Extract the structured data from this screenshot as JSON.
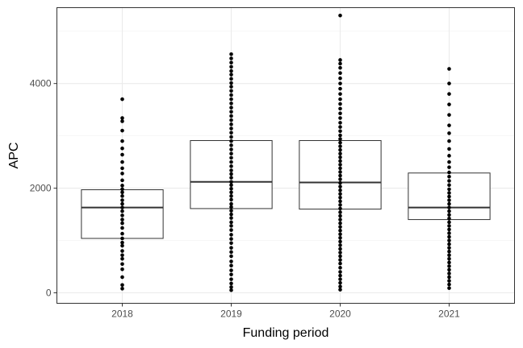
{
  "chart_data": {
    "type": "boxplot",
    "xlabel": "Funding period",
    "ylabel": "APC",
    "categories": [
      "2018",
      "2019",
      "2020",
      "2021"
    ],
    "ylim": [
      -200,
      5450
    ],
    "y_ticks": [
      0,
      2000,
      4000
    ],
    "y_tick_labels": [
      "0",
      "2000",
      "4000"
    ],
    "grid": true,
    "boxes": [
      {
        "category": "2018",
        "q1": 1040,
        "median": 1630,
        "q3": 1970
      },
      {
        "category": "2019",
        "q1": 1610,
        "median": 2120,
        "q3": 2910
      },
      {
        "category": "2020",
        "q1": 1600,
        "median": 2110,
        "q3": 2910
      },
      {
        "category": "2021",
        "q1": 1400,
        "median": 1630,
        "q3": 2290
      }
    ],
    "points": {
      "2018": [
        80,
        150,
        300,
        450,
        550,
        650,
        720,
        800,
        900,
        960,
        1040,
        1130,
        1240,
        1330,
        1400,
        1480,
        1560,
        1630,
        1700,
        1770,
        1850,
        1920,
        1980,
        2050,
        2150,
        2280,
        2380,
        2500,
        2640,
        2760,
        2900,
        3100,
        3280,
        3340,
        3700
      ],
      "2019": [
        50,
        110,
        180,
        260,
        350,
        430,
        520,
        600,
        700,
        780,
        860,
        950,
        1030,
        1110,
        1200,
        1280,
        1350,
        1430,
        1500,
        1570,
        1640,
        1700,
        1780,
        1850,
        1920,
        1990,
        2060,
        2120,
        2200,
        2270,
        2340,
        2420,
        2500,
        2580,
        2660,
        2740,
        2820,
        2900,
        2980,
        3060,
        3140,
        3220,
        3300,
        3380,
        3460,
        3540,
        3620,
        3700,
        3780,
        3860,
        3940,
        4010,
        4090,
        4170,
        4240,
        4320,
        4400,
        4480,
        4560
      ],
      "2020": [
        60,
        120,
        190,
        260,
        330,
        400,
        480,
        560,
        630,
        700,
        770,
        840,
        910,
        980,
        1050,
        1120,
        1190,
        1260,
        1330,
        1400,
        1470,
        1540,
        1610,
        1680,
        1750,
        1820,
        1890,
        1960,
        2030,
        2100,
        2170,
        2240,
        2310,
        2380,
        2450,
        2520,
        2590,
        2660,
        2730,
        2800,
        2870,
        2940,
        3010,
        3090,
        3170,
        3250,
        3340,
        3430,
        3520,
        3610,
        3700,
        3800,
        3900,
        4000,
        4100,
        4200,
        4300,
        4380,
        4450,
        5300
      ],
      "2021": [
        90,
        160,
        230,
        300,
        370,
        440,
        510,
        580,
        650,
        720,
        790,
        860,
        930,
        1000,
        1070,
        1140,
        1210,
        1280,
        1350,
        1420,
        1490,
        1560,
        1630,
        1700,
        1770,
        1840,
        1910,
        1980,
        2060,
        2140,
        2220,
        2300,
        2400,
        2500,
        2620,
        2750,
        2900,
        3050,
        3200,
        3400,
        3600,
        3800,
        4000,
        4280
      ]
    }
  }
}
